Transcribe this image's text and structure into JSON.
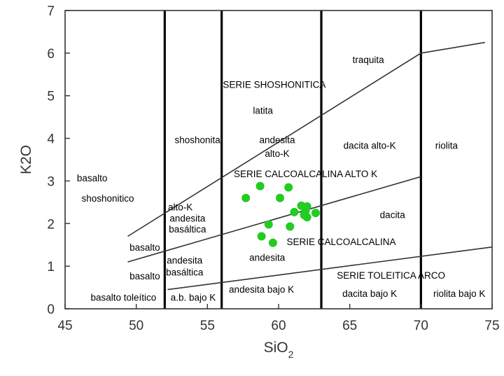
{
  "chart_data": {
    "type": "scatter",
    "xlabel": "SiO2",
    "ylabel": "K2O",
    "xlim": [
      45,
      75
    ],
    "ylim": [
      0,
      7
    ],
    "x_ticks": [
      45,
      50,
      55,
      60,
      65,
      70,
      75
    ],
    "y_ticks": [
      0,
      1,
      2,
      3,
      4,
      5,
      6,
      7
    ],
    "grid": false,
    "marker_color": "#22cc22",
    "line_color": "#333333",
    "series": [
      {
        "points": [
          {
            "x": 57.7,
            "y": 2.6
          },
          {
            "x": 58.7,
            "y": 2.88
          },
          {
            "x": 60.7,
            "y": 2.85
          },
          {
            "x": 60.1,
            "y": 2.6
          },
          {
            "x": 61.6,
            "y": 2.42
          },
          {
            "x": 62.0,
            "y": 2.4
          },
          {
            "x": 61.9,
            "y": 2.3
          },
          {
            "x": 61.1,
            "y": 2.27
          },
          {
            "x": 62.6,
            "y": 2.25
          },
          {
            "x": 61.8,
            "y": 2.2
          },
          {
            "x": 62.0,
            "y": 2.15
          },
          {
            "x": 59.3,
            "y": 1.98
          },
          {
            "x": 60.8,
            "y": 1.93
          },
          {
            "x": 58.8,
            "y": 1.7
          },
          {
            "x": 59.6,
            "y": 1.55
          }
        ]
      }
    ],
    "vertical_boundaries": [
      52,
      56,
      63,
      70
    ],
    "series_boundaries": [
      {
        "points": [
          [
            49.4,
            1.7
          ],
          [
            70,
            6
          ],
          [
            74.5,
            6.25
          ]
        ]
      },
      {
        "points": [
          [
            49.4,
            1.1
          ],
          [
            70,
            3.1
          ]
        ]
      },
      {
        "points": [
          [
            52.2,
            0.45
          ],
          [
            75,
            1.45
          ]
        ]
      }
    ],
    "annotations": [
      {
        "text": "traquita",
        "x": 66.3,
        "y": 5.85
      },
      {
        "text": "SERIE SHOSHONITICA",
        "x": 59.7,
        "y": 5.27
      },
      {
        "text": "latita",
        "x": 58.9,
        "y": 4.66
      },
      {
        "text": "andesita",
        "x": 59.9,
        "y": 3.97
      },
      {
        "text": "alto-K",
        "x": 59.9,
        "y": 3.65
      },
      {
        "text": "shoshonita",
        "x": 54.3,
        "y": 3.97
      },
      {
        "text": "dacita alto-K",
        "x": 66.4,
        "y": 3.84
      },
      {
        "text": "riolita",
        "x": 71.8,
        "y": 3.84
      },
      {
        "text": "SERIE CALCOALCALINA ALTO K",
        "x": 61.9,
        "y": 3.17
      },
      {
        "text": "basalto",
        "x": 46.9,
        "y": 3.07
      },
      {
        "text": "shoshonitico",
        "x": 48.0,
        "y": 2.6
      },
      {
        "text": "alto-K",
        "x": 53.1,
        "y": 2.39
      },
      {
        "text": "andesita",
        "x": 53.6,
        "y": 2.13
      },
      {
        "text": "basáltica",
        "x": 53.6,
        "y": 1.87
      },
      {
        "text": "dacita",
        "x": 68.0,
        "y": 2.21
      },
      {
        "text": "SERIE CALCOALCALINA",
        "x": 64.4,
        "y": 1.58
      },
      {
        "text": "basalto",
        "x": 50.6,
        "y": 1.45
      },
      {
        "text": "andesita",
        "x": 59.2,
        "y": 1.21
      },
      {
        "text": "andesita",
        "x": 53.4,
        "y": 1.14
      },
      {
        "text": "basáltica",
        "x": 53.4,
        "y": 0.86
      },
      {
        "text": "basalto",
        "x": 50.6,
        "y": 0.77
      },
      {
        "text": "SERIE TOLEITICA ARCO",
        "x": 67.9,
        "y": 0.79
      },
      {
        "text": "andesita bajo K",
        "x": 58.8,
        "y": 0.46
      },
      {
        "text": "basalto toleítico",
        "x": 49.1,
        "y": 0.27
      },
      {
        "text": "a.b. bajo K",
        "x": 54.0,
        "y": 0.27
      },
      {
        "text": "dacita bajo K",
        "x": 66.4,
        "y": 0.36
      },
      {
        "text": "riolita bajo K",
        "x": 72.7,
        "y": 0.36
      }
    ]
  }
}
